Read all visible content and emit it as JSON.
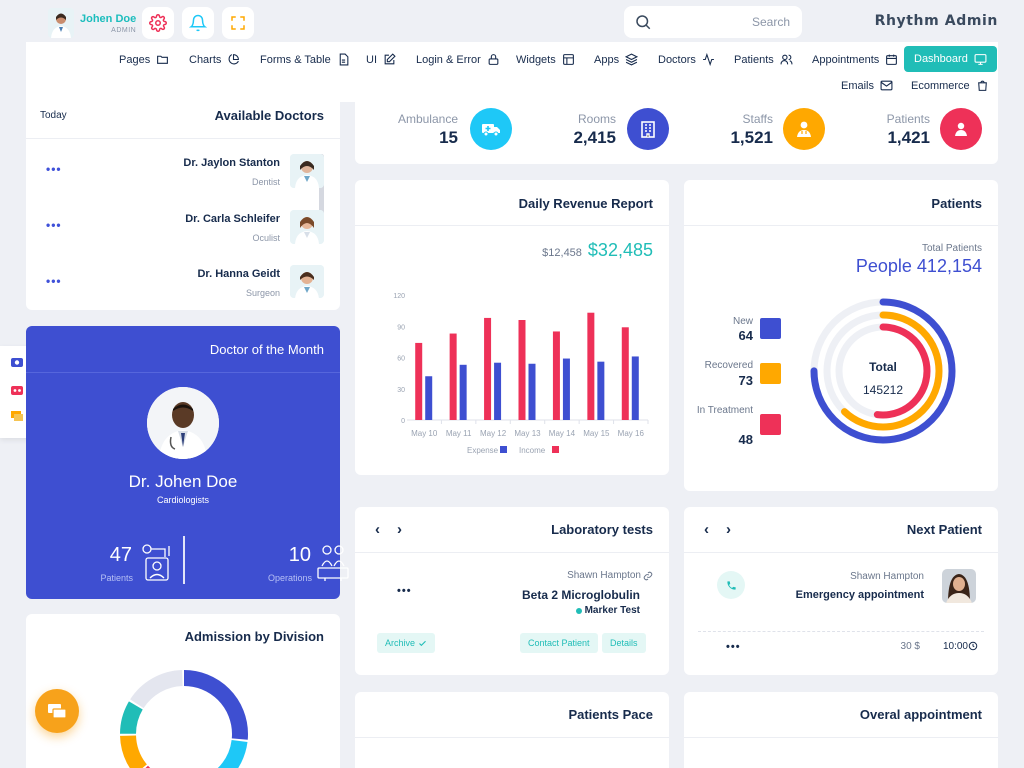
{
  "user": {
    "name": "Johen Doe",
    "role": "ADMIN"
  },
  "search": {
    "placeholder": "Search"
  },
  "brand": "Rhythm Admin",
  "menu": {
    "pages": "Pages",
    "charts": "Charts",
    "forms": "Forms & Table",
    "ui": "UI",
    "login": "Login & Error",
    "widgets": "Widgets",
    "apps": "Apps",
    "doctors": "Doctors",
    "patients": "Patients",
    "appointments": "Appointments",
    "dashboard": "Dashboard",
    "emails": "Emails",
    "ecommerce": "Ecommerce"
  },
  "available_doctors": {
    "today": "Today",
    "title": "Available Doctors",
    "items": [
      {
        "name": "Dr. Jaylon Stanton",
        "specialty": "Dentist"
      },
      {
        "name": "Dr. Carla Schleifer",
        "specialty": "Oculist"
      },
      {
        "name": "Dr. Hanna Geidt",
        "specialty": "Surgeon"
      }
    ]
  },
  "stats": [
    {
      "label": "Ambulance",
      "value": "15",
      "color": "#1ec8f7"
    },
    {
      "label": "Rooms",
      "value": "2,415",
      "color": "#3e4fd1"
    },
    {
      "label": "Staffs",
      "value": "1,521",
      "color": "#ffa800"
    },
    {
      "label": "Patients",
      "value": "1,421",
      "color": "#ee3158"
    }
  ],
  "revenue": {
    "title": "Daily Revenue Report",
    "old_value": "$12,458",
    "new_value": "$32,485"
  },
  "chart_data": {
    "type": "bar",
    "categories": [
      "May 10",
      "May 11",
      "May 12",
      "May 13",
      "May 14",
      "May 15",
      "May 16"
    ],
    "series": [
      {
        "name": "Income",
        "color": "#ee3158",
        "values": [
          74,
          83,
          98,
          96,
          85,
          103,
          89
        ]
      },
      {
        "name": "Expense",
        "color": "#3e4fd1",
        "values": [
          42,
          53,
          55,
          54,
          59,
          56,
          61
        ]
      }
    ],
    "ylim": [
      0,
      120
    ],
    "yticks": [
      0,
      30,
      60,
      90,
      120
    ],
    "legend": [
      {
        "label": "Expense",
        "color": "#3e4fd1"
      },
      {
        "label": "Income",
        "color": "#ee3158"
      }
    ]
  },
  "patients_card": {
    "title": "Patients",
    "total_label": "Total Patients",
    "total_value": "People 412,154",
    "legend": [
      {
        "label": "New",
        "value": "64",
        "color": "#3e4fd1"
      },
      {
        "label": "Recovered",
        "value": "73",
        "color": "#ffa800"
      },
      {
        "label": "In Treatment",
        "value": "48",
        "color": "#ee3158"
      }
    ],
    "donut_center_label": "Total",
    "donut_center_value": "145212",
    "rings": [
      {
        "color": "#3e4fd1",
        "fraction": 0.75
      },
      {
        "color": "#ffa800",
        "fraction": 0.62
      },
      {
        "color": "#ee3158",
        "fraction": 0.52
      }
    ]
  },
  "doctor_month": {
    "title": "Doctor of the Month",
    "name": "Dr. Johen Doe",
    "specialty": "Cardiologists",
    "patients_value": "47",
    "patients_label": "Patients",
    "operations_value": "10",
    "operations_label": "Operations"
  },
  "lab": {
    "title": "Laboratory tests",
    "person": "Shawn Hampton",
    "test": "Beta 2 Microglobulin",
    "tag": "Marker Test",
    "archive": "Archive",
    "contact": "Contact Patient",
    "details": "Details"
  },
  "next_patient": {
    "title": "Next Patient",
    "name": "Shawn Hampton",
    "type": "Emergency appointment",
    "price": "30 $",
    "time": "10:00"
  },
  "admission": {
    "title": "Admission by Division",
    "segments": [
      {
        "color": "#3e4fd1",
        "fraction": 0.27
      },
      {
        "color": "#1ec8f7",
        "fraction": 0.23
      },
      {
        "color": "#ee3158",
        "fraction": 0.14
      },
      {
        "color": "#ffa800",
        "fraction": 0.11
      },
      {
        "color": "#20bdb7",
        "fraction": 0.09
      },
      {
        "color": "#e4e6ef",
        "fraction": 0.16
      }
    ]
  },
  "patients_pace": {
    "title": "Patients Pace"
  },
  "overall_appointment": {
    "title": "Overal appointment"
  }
}
